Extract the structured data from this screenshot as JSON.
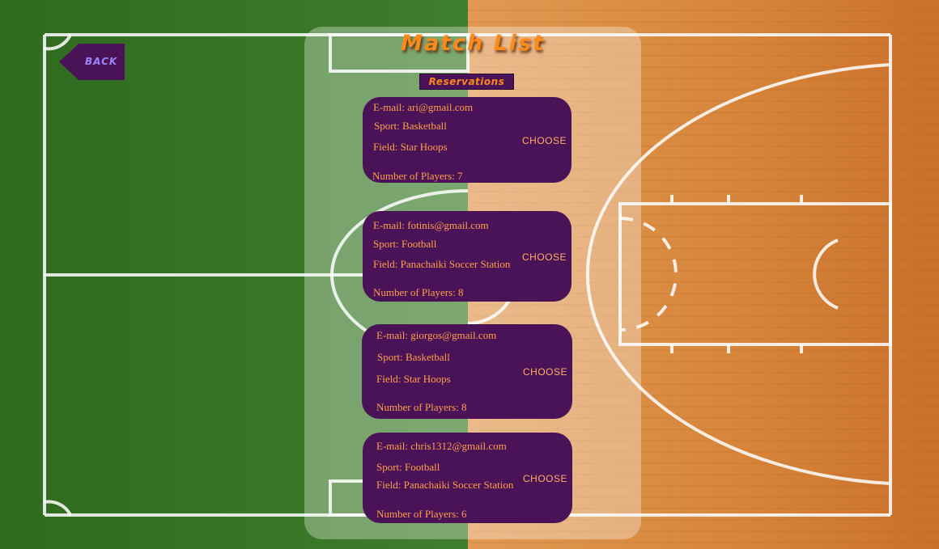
{
  "page": {
    "title": "Match List",
    "subtitle": "Reservations"
  },
  "nav": {
    "back_label": "BACK"
  },
  "colors": {
    "card_bg": "#4a1257",
    "accent_orange": "#ff8a1c",
    "field_green": "#3d7a2a",
    "court_wood": "#d98a3d"
  },
  "matches": [
    {
      "email": "E-mail: ari@gmail.com",
      "sport": "Sport: Basketball",
      "field": "Field: Star Hoops",
      "players": "Number of Players: 7",
      "action": "CHOOSE"
    },
    {
      "email": "E-mail: fotinis@gmail.com",
      "sport": "Sport: Football",
      "field": "Field: Panachaiki Soccer Station",
      "players": "Number of Players: 8",
      "action": "CHOOSE"
    },
    {
      "email": "E-mail: giorgos@gmail.com",
      "sport": "Sport: Basketball",
      "field": "Field: Star Hoops",
      "players": "Number of Players: 8",
      "action": "CHOOSE"
    },
    {
      "email": "E-mail: chris1312@gmail.com",
      "sport": "Sport: Football",
      "field": "Field: Panachaiki Soccer Station",
      "players": "Number of Players: 6",
      "action": "CHOOSE"
    }
  ]
}
